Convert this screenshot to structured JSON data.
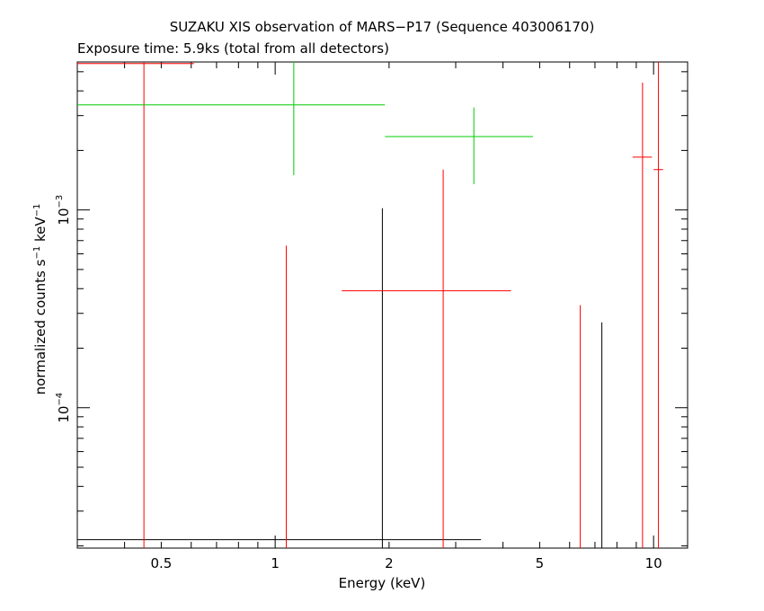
{
  "chart_data": {
    "type": "scatter",
    "title": "SUZAKU XIS observation of MARS−P17 (Sequence 403006170)",
    "subtitle": "Exposure time: 5.9ks (total from all detectors)",
    "xlabel": "Energy (keV)",
    "ylabel": {
      "prefix": "normalized counts s",
      "sup1": "−1",
      "mid": " keV",
      "sup2": "−1"
    },
    "x_scale": "log",
    "y_scale": "log",
    "xlim": [
      0.3,
      12.3
    ],
    "ylim": [
      1.95e-05,
      0.0056
    ],
    "x_ticks": [
      {
        "value": 0.5,
        "label": "0.5"
      },
      {
        "value": 1,
        "label": "1"
      },
      {
        "value": 2,
        "label": "2"
      },
      {
        "value": 5,
        "label": "5"
      },
      {
        "value": 10,
        "label": "10"
      }
    ],
    "y_ticks": [
      {
        "value": 0.0001,
        "base": "10",
        "exp": "−4"
      },
      {
        "value": 0.001,
        "base": "10",
        "exp": "−3"
      }
    ],
    "series": [
      {
        "color": "#000000",
        "points": [
          {
            "x": 1.92,
            "xlo": 0.3,
            "xhi": 3.5,
            "y": 2.15e-05,
            "ylo": 1.95e-05,
            "yhi": 0.00102
          },
          {
            "x": 7.3,
            "xlo": 7.3,
            "xhi": 7.3,
            "y": 2.15e-05,
            "ylo": 1.95e-05,
            "yhi": 0.00027
          }
        ]
      },
      {
        "color": "#ff0000",
        "points": [
          {
            "x": 0.45,
            "xlo": 0.3,
            "xhi": 0.61,
            "y": 0.0055,
            "ylo": 1.95e-05,
            "yhi": 0.0056
          },
          {
            "x": 1.07,
            "xlo": 1.07,
            "xhi": 1.07,
            "y": 2.15e-05,
            "ylo": 1.95e-05,
            "yhi": 0.00066
          },
          {
            "x": 2.78,
            "xlo": 1.5,
            "xhi": 4.2,
            "y": 0.00039,
            "ylo": 1.95e-05,
            "yhi": 0.0016
          },
          {
            "x": 6.4,
            "xlo": 6.4,
            "xhi": 6.4,
            "y": 2.15e-05,
            "ylo": 1.95e-05,
            "yhi": 0.00033
          },
          {
            "x": 9.35,
            "xlo": 8.8,
            "xhi": 9.9,
            "y": 0.00185,
            "ylo": 1.95e-05,
            "yhi": 0.0044
          },
          {
            "x": 10.3,
            "xlo": 10.0,
            "xhi": 10.6,
            "y": 0.0016,
            "ylo": 1.95e-05,
            "yhi": 0.0056
          }
        ]
      },
      {
        "color": "#00cc00",
        "points": [
          {
            "x": 1.12,
            "xlo": 0.3,
            "xhi": 1.95,
            "y": 0.0034,
            "ylo": 0.0015,
            "yhi": 0.0056
          },
          {
            "x": 3.35,
            "xlo": 1.95,
            "xhi": 4.8,
            "y": 0.00235,
            "ylo": 0.00135,
            "yhi": 0.0033
          }
        ]
      }
    ]
  }
}
